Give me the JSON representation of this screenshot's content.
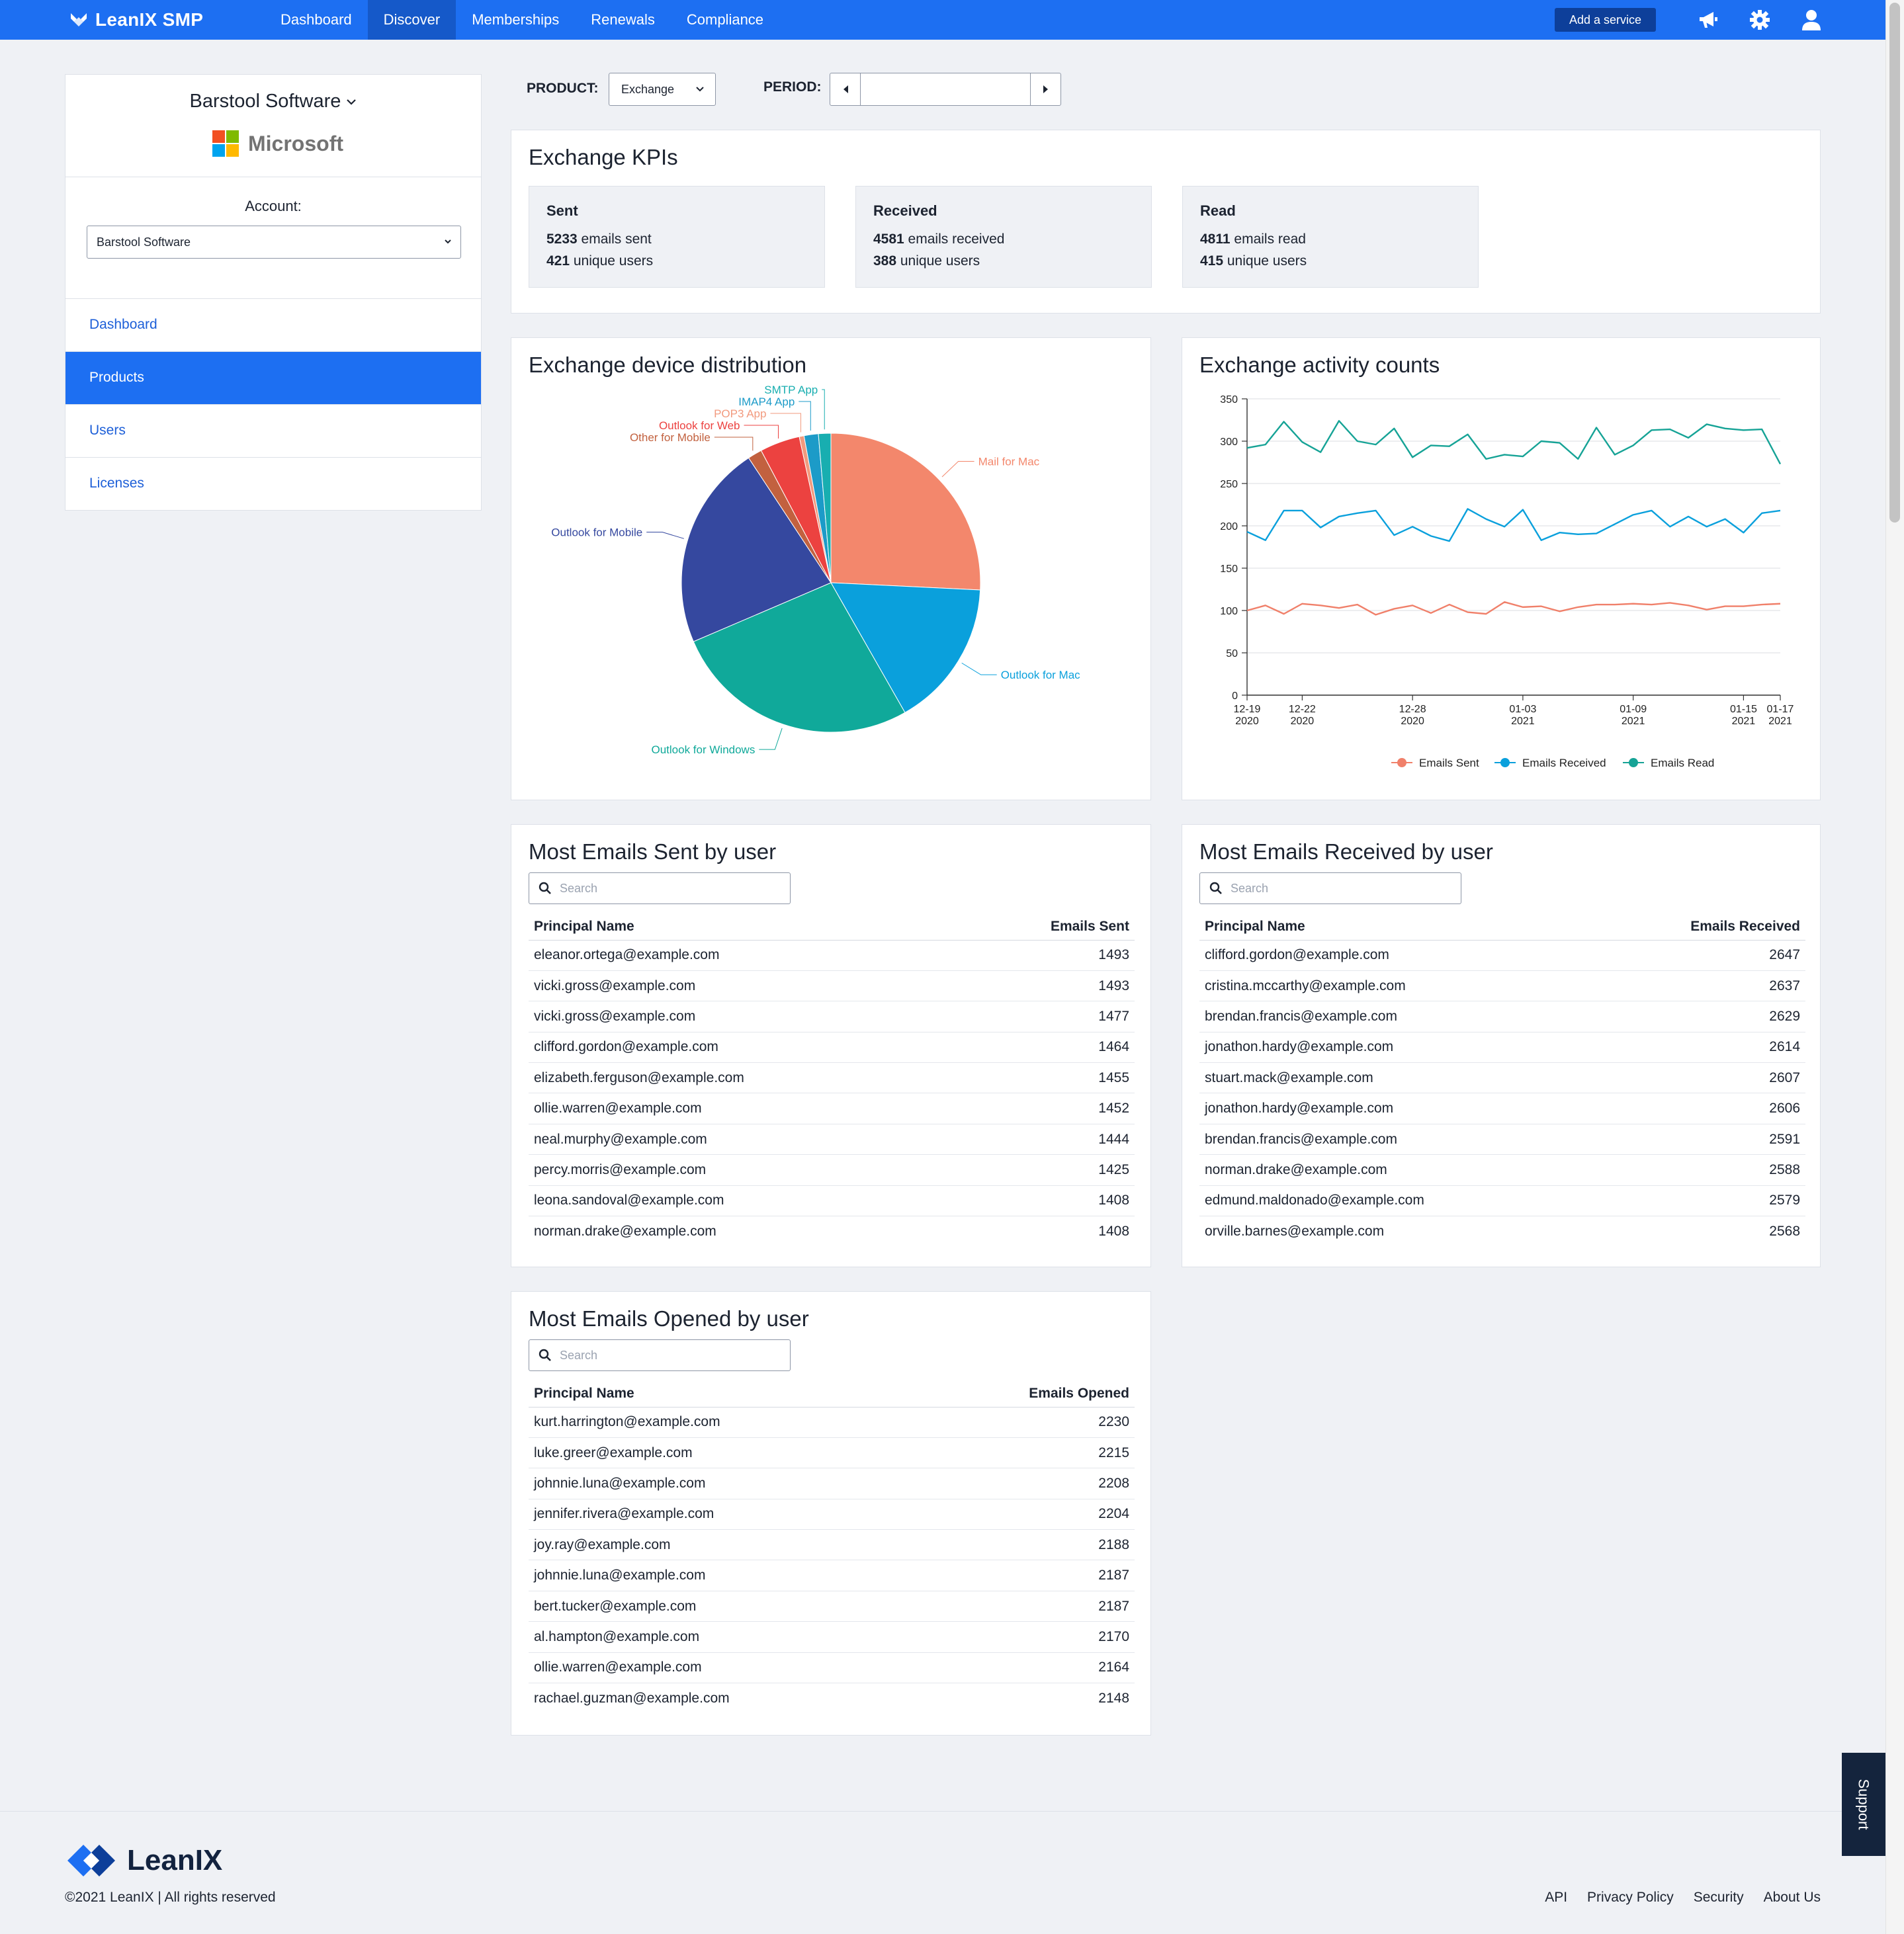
{
  "app": {
    "brand": "LeanIX SMP"
  },
  "nav": {
    "items": [
      "Dashboard",
      "Discover",
      "Memberships",
      "Renewals",
      "Compliance"
    ],
    "active": "Discover"
  },
  "header": {
    "add_service": "Add a service",
    "icons": [
      "megaphone-icon",
      "gear-icon",
      "user-icon"
    ]
  },
  "sidebar": {
    "company": "Barstool Software",
    "vendor": "Microsoft",
    "account_label": "Account:",
    "account_value": "Barstool Software",
    "menu": [
      "Dashboard",
      "Products",
      "Users",
      "Licenses"
    ],
    "active": "Products"
  },
  "filters": {
    "product_label": "PRODUCT:",
    "product_value": "Exchange",
    "period_label": "PERIOD:",
    "period_value": ""
  },
  "kpis": {
    "title": "Exchange KPIs",
    "cards": [
      {
        "title": "Sent",
        "value1": "5233",
        "text1": " emails sent",
        "value2": "421",
        "text2": " unique users"
      },
      {
        "title": "Received",
        "value1": "4581",
        "text1": " emails received",
        "value2": "388",
        "text2": " unique users"
      },
      {
        "title": "Read",
        "value1": "4811",
        "text1": " emails read",
        "value2": "415",
        "text2": " unique users"
      }
    ]
  },
  "colors": {
    "accent": "#1d6ff2",
    "sent": "#f0806a",
    "received": "#0aa0dc",
    "read": "#16a396"
  },
  "chart_data": [
    {
      "type": "pie",
      "title": "Exchange device distribution",
      "labels": [
        "Mail for Mac",
        "Outlook for Mac",
        "Outlook for Windows",
        "Outlook for Mobile",
        "Other for Mobile",
        "Outlook for Web",
        "POP3 App",
        "IMAP4 App",
        "SMTP App"
      ],
      "values": [
        25.0,
        15.5,
        26.0,
        21.5,
        1.5,
        4.2,
        0.5,
        1.5,
        1.3
      ],
      "colors": [
        "#f3876c",
        "#0aa0dc",
        "#10a99a",
        "#35489f",
        "#c2613f",
        "#ec4240",
        "#f29a7e",
        "#1c9bc8",
        "#18aeb0"
      ]
    },
    {
      "type": "line",
      "title": "Exchange activity counts",
      "x": [
        "12-19 2020",
        "12-20 2020",
        "12-21 2020",
        "12-22 2020",
        "12-23 2020",
        "12-24 2020",
        "12-25 2020",
        "12-26 2020",
        "12-27 2020",
        "12-28 2020",
        "12-29 2020",
        "12-30 2020",
        "12-31 2020",
        "01-01 2021",
        "01-02 2021",
        "01-03 2021",
        "01-04 2021",
        "01-05 2021",
        "01-06 2021",
        "01-07 2021",
        "01-08 2021",
        "01-09 2021",
        "01-10 2021",
        "01-11 2021",
        "01-12 2021",
        "01-13 2021",
        "01-14 2021",
        "01-15 2021",
        "01-16 2021",
        "01-17 2021"
      ],
      "x_tick_labels": [
        [
          "12-19",
          "2020"
        ],
        [
          "12-22",
          "2020"
        ],
        [
          "12-28",
          "2020"
        ],
        [
          "01-03",
          "2021"
        ],
        [
          "01-09",
          "2021"
        ],
        [
          "01-15",
          "2021"
        ],
        [
          "01-17",
          "2021"
        ]
      ],
      "x_tick_index": [
        0,
        3,
        9,
        15,
        21,
        27,
        29
      ],
      "ylim": [
        0,
        350
      ],
      "y_ticks": [
        0,
        50,
        100,
        150,
        200,
        250,
        300,
        350
      ],
      "grid": true,
      "legend": "bottom",
      "series": [
        {
          "name": "Emails Sent",
          "color": "#f0806a",
          "values": [
            100,
            106,
            96,
            108,
            106,
            103,
            107,
            95,
            102,
            106,
            97,
            107,
            98,
            96,
            110,
            104,
            105,
            99,
            104,
            107,
            107,
            108,
            107,
            109,
            106,
            101,
            105,
            105,
            107,
            108
          ]
        },
        {
          "name": "Emails Received",
          "color": "#0aa0dc",
          "values": [
            193,
            183,
            218,
            218,
            198,
            211,
            215,
            218,
            189,
            199,
            188,
            182,
            220,
            208,
            199,
            219,
            183,
            192,
            190,
            191,
            202,
            213,
            218,
            199,
            211,
            199,
            208,
            192,
            215,
            218
          ]
        },
        {
          "name": "Emails Read",
          "color": "#16a396",
          "values": [
            292,
            296,
            323,
            299,
            287,
            324,
            300,
            296,
            315,
            281,
            295,
            294,
            308,
            279,
            284,
            282,
            300,
            298,
            279,
            316,
            284,
            295,
            313,
            314,
            304,
            320,
            315,
            313,
            314,
            273
          ]
        }
      ]
    }
  ],
  "tables": {
    "sent": {
      "title": "Most Emails Sent by user",
      "search_placeholder": "Search",
      "columns": [
        "Principal Name",
        "Emails Sent"
      ],
      "rows": [
        [
          "eleanor.ortega@example.com",
          "1493"
        ],
        [
          "vicki.gross@example.com",
          "1493"
        ],
        [
          "vicki.gross@example.com",
          "1477"
        ],
        [
          "clifford.gordon@example.com",
          "1464"
        ],
        [
          "elizabeth.ferguson@example.com",
          "1455"
        ],
        [
          "ollie.warren@example.com",
          "1452"
        ],
        [
          "neal.murphy@example.com",
          "1444"
        ],
        [
          "percy.morris@example.com",
          "1425"
        ],
        [
          "leona.sandoval@example.com",
          "1408"
        ],
        [
          "norman.drake@example.com",
          "1408"
        ]
      ]
    },
    "received": {
      "title": "Most Emails Received by user",
      "search_placeholder": "Search",
      "columns": [
        "Principal Name",
        "Emails Received"
      ],
      "rows": [
        [
          "clifford.gordon@example.com",
          "2647"
        ],
        [
          "cristina.mccarthy@example.com",
          "2637"
        ],
        [
          "brendan.francis@example.com",
          "2629"
        ],
        [
          "jonathon.hardy@example.com",
          "2614"
        ],
        [
          "stuart.mack@example.com",
          "2607"
        ],
        [
          "jonathon.hardy@example.com",
          "2606"
        ],
        [
          "brendan.francis@example.com",
          "2591"
        ],
        [
          "norman.drake@example.com",
          "2588"
        ],
        [
          "edmund.maldonado@example.com",
          "2579"
        ],
        [
          "orville.barnes@example.com",
          "2568"
        ]
      ]
    },
    "opened": {
      "title": "Most Emails Opened by user",
      "search_placeholder": "Search",
      "columns": [
        "Principal Name",
        "Emails Opened"
      ],
      "rows": [
        [
          "kurt.harrington@example.com",
          "2230"
        ],
        [
          "luke.greer@example.com",
          "2215"
        ],
        [
          "johnnie.luna@example.com",
          "2208"
        ],
        [
          "jennifer.rivera@example.com",
          "2204"
        ],
        [
          "joy.ray@example.com",
          "2188"
        ],
        [
          "johnnie.luna@example.com",
          "2187"
        ],
        [
          "bert.tucker@example.com",
          "2187"
        ],
        [
          "al.hampton@example.com",
          "2170"
        ],
        [
          "ollie.warren@example.com",
          "2164"
        ],
        [
          "rachael.guzman@example.com",
          "2148"
        ]
      ]
    }
  },
  "footer": {
    "logo": "LeanIX",
    "copyright": "©2021 LeanIX | All rights reserved",
    "links": [
      "API",
      "Privacy Policy",
      "Security",
      "About Us"
    ]
  },
  "support": "Support"
}
